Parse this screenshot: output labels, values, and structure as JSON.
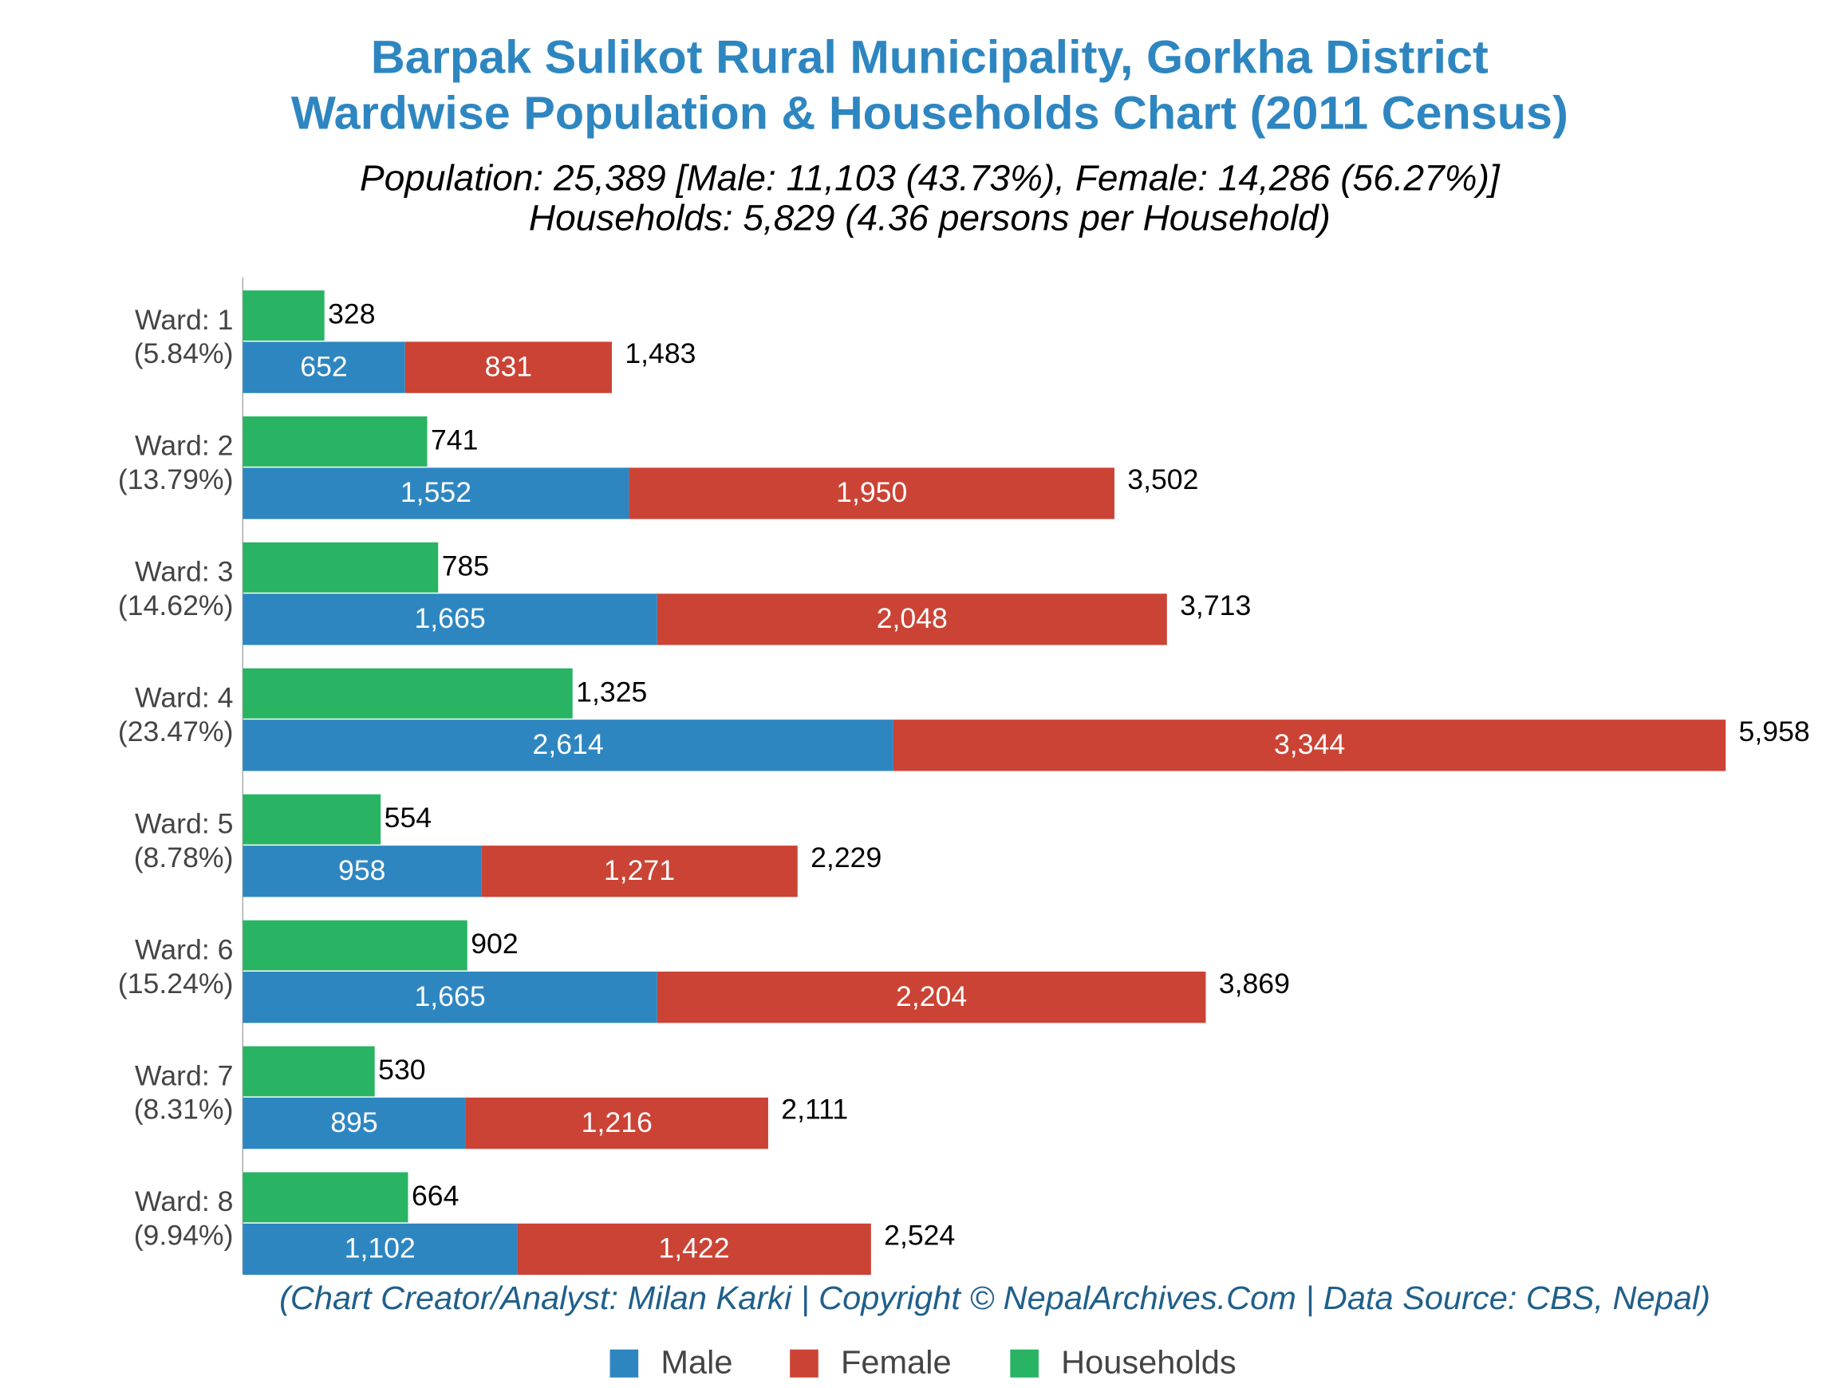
{
  "chart_data": {
    "type": "bar",
    "title": [
      "Barpak Sulikot Rural Municipality, Gorkha District",
      "Wardwise Population & Households Chart (2011 Census)"
    ],
    "subtitle": [
      "Population: 25,389 [Male: 11,103 (43.73%), Female: 14,286 (56.27%)]",
      "Households: 5,829 (4.36 persons per Household)"
    ],
    "footer": "(Chart Creator/Analyst: Milan Karki | Copyright © NepalArchives.Com | Data Source: CBS, Nepal)",
    "categories": [
      "Ward: 1",
      "Ward: 2",
      "Ward: 3",
      "Ward: 4",
      "Ward: 5",
      "Ward: 6",
      "Ward: 7",
      "Ward: 8"
    ],
    "category_shares": [
      "(5.84%)",
      "(13.79%)",
      "(14.62%)",
      "(23.47%)",
      "(8.78%)",
      "(15.24%)",
      "(8.31%)",
      "(9.94%)"
    ],
    "orientation": "horizontal",
    "xlim": [
      0,
      6000
    ],
    "series": [
      {
        "name": "Male",
        "color": "#2e86c1",
        "stack": "population",
        "values": [
          652,
          1552,
          1665,
          2614,
          958,
          1665,
          895,
          1102
        ],
        "value_labels": [
          "652",
          "1,552",
          "1,665",
          "2,614",
          "958",
          "1,665",
          "895",
          "1,102"
        ]
      },
      {
        "name": "Female",
        "color": "#cb4335",
        "stack": "population",
        "values": [
          831,
          1950,
          2048,
          3344,
          1271,
          2204,
          1216,
          1422
        ],
        "value_labels": [
          "831",
          "1,950",
          "2,048",
          "3,344",
          "1,271",
          "2,204",
          "1,216",
          "1,422"
        ]
      },
      {
        "name": "Households",
        "color": "#28b463",
        "stack": "households",
        "values": [
          328,
          741,
          785,
          1325,
          554,
          902,
          530,
          664
        ],
        "value_labels": [
          "328",
          "741",
          "785",
          "1,325",
          "554",
          "902",
          "530",
          "664"
        ]
      }
    ],
    "totals": {
      "values": [
        1483,
        3502,
        3713,
        5958,
        2229,
        3869,
        2111,
        2524
      ],
      "value_labels": [
        "1,483",
        "3,502",
        "3,713",
        "5,958",
        "2,229",
        "3,869",
        "2,111",
        "2,524"
      ]
    },
    "legend": "bottom"
  }
}
